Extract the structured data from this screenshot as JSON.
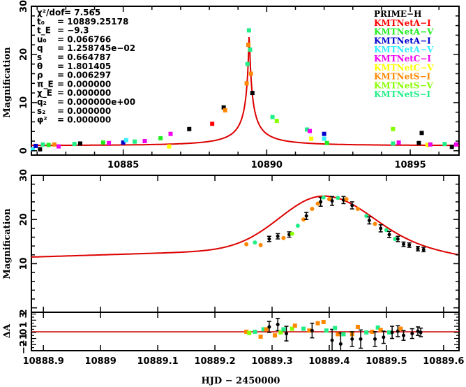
{
  "chart_data": [
    {
      "type": "scatter",
      "panel": "full-light-curve",
      "xlabel": "",
      "ylabel": "Magnification",
      "xlim": [
        10881.8,
        10896.7
      ],
      "ylim": [
        -0.9,
        30
      ],
      "xticks": [
        10885,
        10890,
        10895
      ],
      "xtick_labels": [
        "10885",
        "10890",
        "10895"
      ],
      "yticks": [
        0,
        10,
        20,
        30
      ],
      "ytick_labels": [
        "0",
        "10",
        "20",
        "30"
      ],
      "model": {
        "t0": 10889.25178,
        "tE": 9.3,
        "u0": 0.066766,
        "peak_t": 10889.39,
        "peak_A": 25.2,
        "baseline": 1.05,
        "color": "#dd0000"
      },
      "parameters": [
        {
          "name": "χ²/dof",
          "value": "= 7.565"
        },
        {
          "name": "t₀",
          "value": "= 10889.25178"
        },
        {
          "name": "t_E",
          "value": "= −9.3"
        },
        {
          "name": "u₀",
          "value": "= 0.066766"
        },
        {
          "name": "q",
          "value": "= 1.258745e−02"
        },
        {
          "name": "s",
          "value": "= 0.664787"
        },
        {
          "name": "θ",
          "value": "= 1.801405"
        },
        {
          "name": "ρ",
          "value": "= 0.006297"
        },
        {
          "name": "π_E",
          "value": "= 0.000000"
        },
        {
          "name": "χ_E",
          "value": "= 0.000000"
        },
        {
          "name": "q₂",
          "value": "= 0.000000e+00"
        },
        {
          "name": "s₂",
          "value": "= 0.000000"
        },
        {
          "name": "φ²",
          "value": "= 0.000000"
        }
      ],
      "legend_position": "top-right",
      "legend": [
        {
          "label": "PRIME−H",
          "color": "#000000"
        },
        {
          "label": "KMTNetA−I",
          "color": "#ff0000"
        },
        {
          "label": "KMTNetA−V",
          "color": "#22ee22"
        },
        {
          "label": "KMTNetA−I",
          "color": "#0000cc"
        },
        {
          "label": "KMTNetA−V",
          "color": "#33eeff"
        },
        {
          "label": "KMTNetC−I",
          "color": "#ee00ee"
        },
        {
          "label": "KMTNetC−V",
          "color": "#ffff00"
        },
        {
          "label": "KMTNetS−I",
          "color": "#ff8800"
        },
        {
          "label": "KMTNetS−V",
          "color": "#88ff00"
        },
        {
          "label": "KMTNetS−I",
          "color": "#22ee88"
        }
      ],
      "points": [
        {
          "x": 10881.85,
          "y": 0.3,
          "c": "#33eeff"
        },
        {
          "x": 10881.95,
          "y": 1.0,
          "c": "#0000cc"
        },
        {
          "x": 10882.1,
          "y": 0.3,
          "c": "#000000"
        },
        {
          "x": 10882.2,
          "y": 1.3,
          "c": "#22ee88"
        },
        {
          "x": 10882.4,
          "y": 1.2,
          "c": "#22ee22"
        },
        {
          "x": 10882.6,
          "y": 1.3,
          "c": "#ff8800"
        },
        {
          "x": 10882.75,
          "y": 0.9,
          "c": "#ee00ee"
        },
        {
          "x": 10883.3,
          "y": 1.4,
          "c": "#22ee88"
        },
        {
          "x": 10883.5,
          "y": 1.5,
          "c": "#000000"
        },
        {
          "x": 10884.3,
          "y": 1.7,
          "c": "#22ee22"
        },
        {
          "x": 10884.5,
          "y": 1.6,
          "c": "#ee00ee"
        },
        {
          "x": 10885.0,
          "y": 1.7,
          "c": "#0000cc"
        },
        {
          "x": 10885.1,
          "y": 2.2,
          "c": "#33eeff"
        },
        {
          "x": 10885.4,
          "y": 1.9,
          "c": "#22ee88"
        },
        {
          "x": 10885.75,
          "y": 2.0,
          "c": "#ee00ee"
        },
        {
          "x": 10886.3,
          "y": 2.6,
          "c": "#22ee22"
        },
        {
          "x": 10886.65,
          "y": 3.5,
          "c": "#ee00ee"
        },
        {
          "x": 10886.6,
          "y": 0.9,
          "c": "#ffff00"
        },
        {
          "x": 10887.3,
          "y": 4.5,
          "c": "#000000"
        },
        {
          "x": 10888.1,
          "y": 5.6,
          "c": "#ff0000"
        },
        {
          "x": 10888.5,
          "y": 9.0,
          "c": "#000000"
        },
        {
          "x": 10888.55,
          "y": 8.4,
          "c": "#ff8800"
        },
        {
          "x": 10889.3,
          "y": 14.0,
          "c": "#ff8800"
        },
        {
          "x": 10889.33,
          "y": 18.0,
          "c": "#22ee88"
        },
        {
          "x": 10889.36,
          "y": 22.0,
          "c": "#ff8800"
        },
        {
          "x": 10889.38,
          "y": 25.0,
          "c": "#22ee88"
        },
        {
          "x": 10889.42,
          "y": 21.0,
          "c": "#22ee88"
        },
        {
          "x": 10889.45,
          "y": 16.0,
          "c": "#ff8800"
        },
        {
          "x": 10889.5,
          "y": 12.0,
          "c": "#000000"
        },
        {
          "x": 10890.2,
          "y": 7.0,
          "c": "#22ee88"
        },
        {
          "x": 10890.35,
          "y": 6.2,
          "c": "#88ff00"
        },
        {
          "x": 10891.4,
          "y": 4.4,
          "c": "#22ee88"
        },
        {
          "x": 10891.5,
          "y": 4.1,
          "c": "#ee00ee"
        },
        {
          "x": 10891.55,
          "y": 2.5,
          "c": "#ffff00"
        },
        {
          "x": 10892.0,
          "y": 3.5,
          "c": "#0000cc"
        },
        {
          "x": 10892.0,
          "y": 2.5,
          "c": "#33eeff"
        },
        {
          "x": 10892.1,
          "y": 1.6,
          "c": "#22ee22"
        },
        {
          "x": 10894.4,
          "y": 4.5,
          "c": "#88ff00"
        },
        {
          "x": 10894.4,
          "y": 1.5,
          "c": "#22ee88"
        },
        {
          "x": 10894.6,
          "y": 1.7,
          "c": "#ee00ee"
        },
        {
          "x": 10895.4,
          "y": 3.7,
          "c": "#000000"
        },
        {
          "x": 10895.3,
          "y": 1.6,
          "c": "#000000"
        },
        {
          "x": 10895.6,
          "y": 1.2,
          "c": "#ffff00"
        },
        {
          "x": 10895.7,
          "y": 1.3,
          "c": "#ee00ee"
        },
        {
          "x": 10896.2,
          "y": 1.4,
          "c": "#22ee88"
        },
        {
          "x": 10896.45,
          "y": 0.8,
          "c": "#000000"
        },
        {
          "x": 10896.6,
          "y": 1.3,
          "c": "#ee00ee"
        }
      ]
    },
    {
      "type": "scatter",
      "panel": "peak-zoom",
      "xlabel": "",
      "ylabel": "Magnification",
      "xlim": [
        10888.879,
        10889.627
      ],
      "ylim": [
        -1,
        30
      ],
      "yticks": [
        10,
        20,
        30
      ],
      "ytick_labels": [
        "10",
        "20",
        "30"
      ],
      "model": {
        "start_A": 11.5,
        "peak_t": 10889.39,
        "peak_A": 25.3,
        "end_A": 11.8,
        "color": "#dd0000"
      },
      "points": [
        {
          "x": 10889.255,
          "y": 14.4,
          "c": "#ff8800"
        },
        {
          "x": 10889.27,
          "y": 14.8,
          "c": "#22ee88"
        },
        {
          "x": 10889.28,
          "y": 14.2,
          "c": "#ff8800"
        },
        {
          "x": 10889.295,
          "y": 15.6,
          "c": "#000000",
          "e": 0.6
        },
        {
          "x": 10889.31,
          "y": 16.2,
          "c": "#000000",
          "e": 0.6
        },
        {
          "x": 10889.32,
          "y": 15.8,
          "c": "#ff8800"
        },
        {
          "x": 10889.33,
          "y": 16.6,
          "c": "#000000",
          "e": 0.6
        },
        {
          "x": 10889.335,
          "y": 16.8,
          "c": "#88ff00"
        },
        {
          "x": 10889.345,
          "y": 18.6,
          "c": "#22ee88"
        },
        {
          "x": 10889.355,
          "y": 20.0,
          "c": "#ff8800"
        },
        {
          "x": 10889.36,
          "y": 20.8,
          "c": "#000000",
          "e": 0.8
        },
        {
          "x": 10889.37,
          "y": 22.4,
          "c": "#ff8800"
        },
        {
          "x": 10889.38,
          "y": 23.6,
          "c": "#ff8800"
        },
        {
          "x": 10889.385,
          "y": 24.0,
          "c": "#000000",
          "e": 1.0
        },
        {
          "x": 10889.39,
          "y": 25.0,
          "c": "#22ee88"
        },
        {
          "x": 10889.4,
          "y": 24.6,
          "c": "#ff8800"
        },
        {
          "x": 10889.405,
          "y": 24.2,
          "c": "#000000",
          "e": 1.0
        },
        {
          "x": 10889.415,
          "y": 24.9,
          "c": "#22ee88"
        },
        {
          "x": 10889.425,
          "y": 24.4,
          "c": "#000000",
          "e": 0.8
        },
        {
          "x": 10889.43,
          "y": 24.6,
          "c": "#ff8800"
        },
        {
          "x": 10889.44,
          "y": 23.2,
          "c": "#000000",
          "e": 0.8
        },
        {
          "x": 10889.45,
          "y": 22.4,
          "c": "#ff8800"
        },
        {
          "x": 10889.465,
          "y": 20.8,
          "c": "#22ee88"
        },
        {
          "x": 10889.47,
          "y": 19.8,
          "c": "#000000",
          "e": 0.8
        },
        {
          "x": 10889.48,
          "y": 19.0,
          "c": "#ff8800"
        },
        {
          "x": 10889.49,
          "y": 18.0,
          "c": "#000000",
          "e": 0.8
        },
        {
          "x": 10889.5,
          "y": 17.6,
          "c": "#22ee88"
        },
        {
          "x": 10889.505,
          "y": 16.6,
          "c": "#000000",
          "e": 0.7
        },
        {
          "x": 10889.515,
          "y": 15.6,
          "c": "#22ee88"
        },
        {
          "x": 10889.52,
          "y": 15.6,
          "c": "#000000",
          "e": 0.6
        },
        {
          "x": 10889.53,
          "y": 14.4,
          "c": "#000000",
          "e": 0.5
        },
        {
          "x": 10889.54,
          "y": 14.2,
          "c": "#000000",
          "e": 0.5
        },
        {
          "x": 10889.555,
          "y": 13.4,
          "c": "#000000",
          "e": 0.5
        },
        {
          "x": 10889.565,
          "y": 13.2,
          "c": "#000000",
          "e": 0.5
        }
      ]
    },
    {
      "type": "scatter",
      "panel": "residuals",
      "xlabel": "HJD − 2450000",
      "ylabel": "ΔA",
      "xlim": [
        10888.879,
        10889.627
      ],
      "ylim": [
        -3,
        3.3
      ],
      "xticks": [
        10888.9,
        10889.0,
        10889.1,
        10889.2,
        10889.3,
        10889.4,
        10889.5,
        10889.6
      ],
      "xtick_labels": [
        "10888.9",
        "10889",
        "10889.1",
        "10889.2",
        "10889.3",
        "10889.4",
        "10889.5",
        "10889.6"
      ],
      "ytick_labels": [
        "−2",
        "−1",
        "0",
        "1",
        "3",
        "2"
      ],
      "points": [
        {
          "x": 10889.255,
          "y": 0.1,
          "c": "#ff8800"
        },
        {
          "x": 10889.26,
          "y": -0.1,
          "c": "#88ff00"
        },
        {
          "x": 10889.27,
          "y": 0.1,
          "c": "#22ee88"
        },
        {
          "x": 10889.28,
          "y": -0.7,
          "c": "#ff8800"
        },
        {
          "x": 10889.285,
          "y": 0.5,
          "c": "#22ee88"
        },
        {
          "x": 10889.29,
          "y": 0.5,
          "c": "#ff8800"
        },
        {
          "x": 10889.295,
          "y": 0.9,
          "c": "#000000",
          "e": 0.9
        },
        {
          "x": 10889.305,
          "y": -0.5,
          "c": "#ff8800"
        },
        {
          "x": 10889.31,
          "y": 1.3,
          "c": "#000000",
          "e": 1.0
        },
        {
          "x": 10889.315,
          "y": 0.0,
          "c": "#88ff00"
        },
        {
          "x": 10889.32,
          "y": 0.5,
          "c": "#22ee88"
        },
        {
          "x": 10889.325,
          "y": -0.2,
          "c": "#000000",
          "e": 1.2
        },
        {
          "x": 10889.335,
          "y": 0.6,
          "c": "#88ff00"
        },
        {
          "x": 10889.34,
          "y": 1.1,
          "c": "#ff8800"
        },
        {
          "x": 10889.355,
          "y": 0.6,
          "c": "#22ee88"
        },
        {
          "x": 10889.365,
          "y": 0.3,
          "c": "#ff8800"
        },
        {
          "x": 10889.37,
          "y": 0.3,
          "c": "#000000",
          "e": 1.2
        },
        {
          "x": 10889.38,
          "y": 1.5,
          "c": "#ff8800"
        },
        {
          "x": 10889.39,
          "y": 1.7,
          "c": "#ff8800"
        },
        {
          "x": 10889.395,
          "y": 0.3,
          "c": "#22ee88"
        },
        {
          "x": 10889.405,
          "y": -1.3,
          "c": "#000000",
          "e": 1.8
        },
        {
          "x": 10889.41,
          "y": 0.7,
          "c": "#22ee88"
        },
        {
          "x": 10889.415,
          "y": -0.3,
          "c": "#ff8800"
        },
        {
          "x": 10889.42,
          "y": -1.9,
          "c": "#000000",
          "e": 1.8
        },
        {
          "x": 10889.425,
          "y": -0.3,
          "c": "#22ee88"
        },
        {
          "x": 10889.44,
          "y": -0.3,
          "c": "#ff8800"
        },
        {
          "x": 10889.44,
          "y": -1.1,
          "c": "#000000",
          "e": 1.2
        },
        {
          "x": 10889.45,
          "y": 0.9,
          "c": "#ff8800"
        },
        {
          "x": 10889.455,
          "y": -1.1,
          "c": "#000000",
          "e": 1.5
        },
        {
          "x": 10889.465,
          "y": 0.0,
          "c": "#22ee88"
        },
        {
          "x": 10889.475,
          "y": 0.1,
          "c": "#ff8800"
        },
        {
          "x": 10889.48,
          "y": -1.1,
          "c": "#000000",
          "e": 1.2
        },
        {
          "x": 10889.485,
          "y": 0.8,
          "c": "#22ee88"
        },
        {
          "x": 10889.49,
          "y": 0.4,
          "c": "#ff8800"
        },
        {
          "x": 10889.495,
          "y": -0.8,
          "c": "#000000",
          "e": 1.0
        },
        {
          "x": 10889.505,
          "y": 0.0,
          "c": "#22ee88"
        },
        {
          "x": 10889.51,
          "y": 0.0,
          "c": "#000000",
          "e": 1.0
        },
        {
          "x": 10889.52,
          "y": 0.2,
          "c": "#000000",
          "e": 0.9
        },
        {
          "x": 10889.525,
          "y": 0.6,
          "c": "#ff8800"
        },
        {
          "x": 10889.53,
          "y": -0.5,
          "c": "#000000",
          "e": 0.8
        },
        {
          "x": 10889.545,
          "y": -0.2,
          "c": "#000000",
          "e": 0.8
        },
        {
          "x": 10889.555,
          "y": 0.2,
          "c": "#000000",
          "e": 0.7
        },
        {
          "x": 10889.56,
          "y": 0.0,
          "c": "#000000",
          "e": 0.7
        }
      ]
    }
  ]
}
